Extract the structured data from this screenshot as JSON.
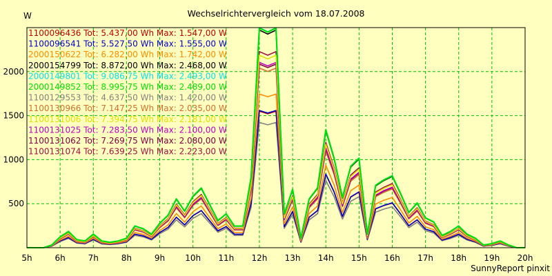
{
  "chart_data": {
    "type": "line",
    "title": "Wechselrichtervergleich vom 18.07.2008",
    "ylabel": "W",
    "xlabel": "",
    "credit": "SunnyReport pinxit",
    "ylim": [
      0,
      2500
    ],
    "xlim": [
      5,
      20
    ],
    "yticks": [
      500,
      1000,
      1500,
      2000
    ],
    "xticks": [
      "5h",
      "6h",
      "7h",
      "8h",
      "9h",
      "10h",
      "11h",
      "12h",
      "13h",
      "14h",
      "15h",
      "16h",
      "17h",
      "18h",
      "19h",
      "20h"
    ],
    "grid": true,
    "legend_position": "top-left",
    "background_color": "#ffffc0",
    "grid_color": "#00c000",
    "x": [
      5,
      5.25,
      5.5,
      5.75,
      6,
      6.25,
      6.5,
      6.75,
      7,
      7.25,
      7.5,
      7.75,
      8,
      8.25,
      8.5,
      8.75,
      9,
      9.25,
      9.5,
      9.75,
      10,
      10.25,
      10.5,
      10.75,
      11,
      11.25,
      11.5,
      11.75,
      12,
      12.25,
      12.5,
      12.75,
      13,
      13.25,
      13.5,
      13.75,
      14,
      14.25,
      14.5,
      14.75,
      15,
      15.25,
      15.5,
      15.75,
      16,
      16.25,
      16.5,
      16.75,
      17,
      17.25,
      17.5,
      17.75,
      18,
      18.25,
      18.5,
      18.75,
      19,
      19.25,
      19.5,
      19.75,
      20
    ],
    "base_profile": [
      0,
      0,
      0,
      0.02,
      0.08,
      0.12,
      0.06,
      0.05,
      0.1,
      0.05,
      0.04,
      0.05,
      0.07,
      0.16,
      0.14,
      0.1,
      0.18,
      0.24,
      0.36,
      0.27,
      0.38,
      0.44,
      0.32,
      0.2,
      0.25,
      0.16,
      0.16,
      0.52,
      1.62,
      1.59,
      1.62,
      0.25,
      0.43,
      0.07,
      0.36,
      0.44,
      0.87,
      0.66,
      0.37,
      0.6,
      0.66,
      0.1,
      0.46,
      0.5,
      0.53,
      0.4,
      0.26,
      0.33,
      0.22,
      0.19,
      0.09,
      0.12,
      0.16,
      0.1,
      0.07,
      0.02,
      0.03,
      0.05,
      0.02,
      0,
      0
    ],
    "series": [
      {
        "name": "1100096436",
        "tot": "Tot: 5.437,00 Wh",
        "max": "Max: 1.547,00 W",
        "scale": 957,
        "color": "#c00000"
      },
      {
        "name": "1100096541",
        "tot": "Tot: 5.527,50 Wh",
        "max": "Max: 1.555,00 W",
        "scale": 962,
        "color": "#0000c8"
      },
      {
        "name": "2000150622",
        "tot": "Tot: 6.282,00 Wh",
        "max": "Max: 1.742,00 W",
        "scale": 1078,
        "color": "#ff8c00"
      },
      {
        "name": "2000154799",
        "tot": "Tot: 8.872,00 Wh",
        "max": "Max: 2.468,00 W",
        "scale": 1526,
        "color": "#000000"
      },
      {
        "name": "2000149801",
        "tot": "Tot: 9.086,75 Wh",
        "max": "Max: 2.493,00 W",
        "scale": 1542,
        "color": "#00e5e5"
      },
      {
        "name": "2000149852",
        "tot": "Tot: 8.995,75 Wh",
        "max": "Max: 2.489,00 W",
        "scale": 1540,
        "color": "#00e000"
      },
      {
        "name": "1100129553",
        "tot": "Tot: 4.637,50 Wh",
        "max": "Max: 1.420,00 W",
        "scale": 878,
        "color": "#808080"
      },
      {
        "name": "1100130966",
        "tot": "Tot: 7.147,25 Wh",
        "max": "Max: 2.035,00 W",
        "scale": 1259,
        "color": "#d07030"
      },
      {
        "name": "1100131006",
        "tot": "Tot: 7.394,75 Wh",
        "max": "Max: 2.181,00 W",
        "scale": 1349,
        "color": "#e0e000"
      },
      {
        "name": "1100131025",
        "tot": "Tot: 7.283,50 Wh",
        "max": "Max: 2.100,00 W",
        "scale": 1299,
        "color": "#c000c0"
      },
      {
        "name": "1100131062",
        "tot": "Tot: 7.269,75 Wh",
        "max": "Max: 2.080,00 W",
        "scale": 1287,
        "color": "#800040"
      },
      {
        "name": "1100131074",
        "tot": "Tot: 7.639,25 Wh",
        "max": "Max: 2.223,00 W",
        "scale": 1375,
        "color": "#a01040"
      }
    ]
  }
}
